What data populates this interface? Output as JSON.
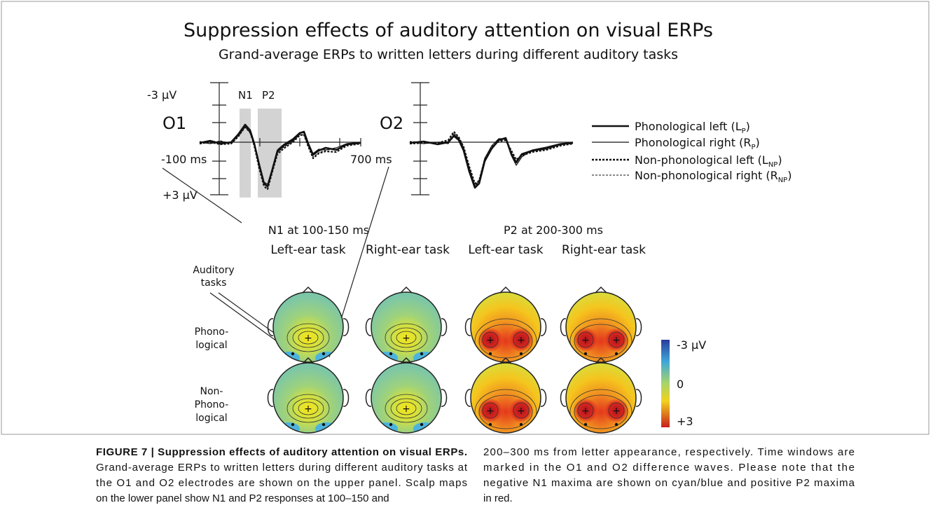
{
  "figure": {
    "title": "Suppression effects of auditory attention on visual ERPs",
    "subtitle": "Grand-average ERPs to written letters during different auditory tasks",
    "erp": {
      "o1": {
        "label": "O1",
        "y_top": "-3 µV",
        "y_bottom": "+3 µV",
        "x_start": "-100 ms",
        "x_end": "700 ms",
        "windows": [
          "N1",
          "P2"
        ]
      },
      "o2": {
        "label": "O2"
      }
    },
    "legend": [
      [
        "Phonological left (L",
        "P",
        ")"
      ],
      [
        "Phonological right (R",
        "P",
        ")"
      ],
      [
        "Non-phonological left (L",
        "NP",
        ")"
      ],
      [
        "Non-phonological right (R",
        "NP",
        ")"
      ]
    ],
    "scalp_maps": {
      "groups": [
        {
          "title": "N1 at 100-150 ms",
          "columns": [
            "Left-ear task",
            "Right-ear task"
          ]
        },
        {
          "title": "P2 at 200-300 ms",
          "columns": [
            "Left-ear task",
            "Right-ear task"
          ]
        }
      ],
      "row_header": [
        "Auditory",
        "tasks"
      ],
      "rows": [
        [
          "Phono-",
          "logical"
        ],
        [
          "Non-",
          "Phono-",
          "logical"
        ]
      ],
      "colorbar": [
        "-3 µV",
        "0",
        "+3"
      ]
    }
  },
  "caption": {
    "left": [
      "FIGURE 7 | Suppression effects of auditory attention on visual ERPs.",
      "Grand-average ERPs to written letters during different auditory tasks at",
      "the O1 and O2 electrodes are shown on the upper panel. Scalp maps",
      "on the lower panel show N1 and P2 responses at 100–150 and"
    ],
    "right": [
      "200–300 ms from letter appearance, respectively. Time windows are",
      "marked in the O1 and O2 difference waves. Please note that the",
      "negative N1 maxima are shown on cyan/blue and positive P2 maxima",
      "in red."
    ]
  }
}
